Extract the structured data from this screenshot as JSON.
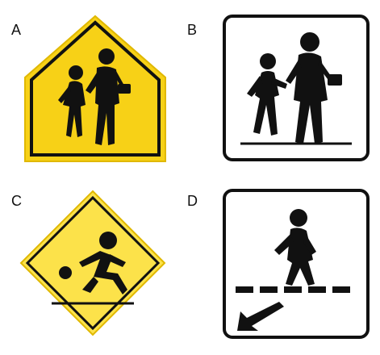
{
  "options": [
    {
      "letter": "A",
      "sign": "school-zone-pentagon-sign"
    },
    {
      "letter": "B",
      "sign": "school-crossing-square-sign"
    },
    {
      "letter": "C",
      "sign": "playground-diamond-sign"
    },
    {
      "letter": "D",
      "sign": "pedestrian-crossing-arrow-sign"
    }
  ],
  "colors": {
    "sign_yellow": "#F7D117",
    "sign_yellow_light": "#FCE24A",
    "sign_black": "#111111",
    "sign_white": "#FFFFFF"
  }
}
